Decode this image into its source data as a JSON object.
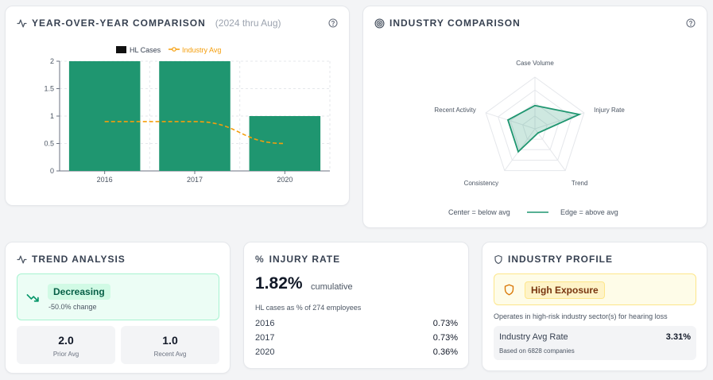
{
  "yoy": {
    "title": "YEAR-OVER-YEAR COMPARISON",
    "subtitle": "(2024 thru Aug)",
    "legend_cases": "HL Cases",
    "legend_avg": "Industry Avg"
  },
  "industry": {
    "title": "INDUSTRY COMPARISON",
    "note_center": "Center = below avg",
    "note_edge": "Edge = above avg"
  },
  "trend": {
    "title": "TREND ANALYSIS",
    "badge": "Decreasing",
    "change": "-50.0% change",
    "prior_value": "2.0",
    "prior_label": "Prior Avg",
    "recent_value": "1.0",
    "recent_label": "Recent Avg"
  },
  "rate": {
    "title": "INJURY RATE",
    "value": "1.82%",
    "qualifier": "cumulative",
    "description": "HL cases as % of 274 employees",
    "rows": [
      {
        "year": "2016",
        "rate": "0.73%"
      },
      {
        "year": "2017",
        "rate": "0.73%"
      },
      {
        "year": "2020",
        "rate": "0.36%"
      }
    ]
  },
  "profile": {
    "title": "INDUSTRY PROFILE",
    "badge": "High Exposure",
    "description": "Operates in high-risk industry sector(s) for hearing loss",
    "avg_label": "Industry Avg Rate",
    "avg_value": "3.31%",
    "avg_sub": "Based on 6828 companies"
  },
  "colors": {
    "bar": "#1f9670",
    "avg_line": "#f59e0b",
    "radar": "#1f9670"
  },
  "chart_data": [
    {
      "type": "bar",
      "title": "YEAR-OVER-YEAR COMPARISON",
      "categories": [
        "2016",
        "2017",
        "2020"
      ],
      "series": [
        {
          "name": "HL Cases",
          "values": [
            2,
            2,
            1
          ]
        },
        {
          "name": "Industry Avg",
          "values": [
            0.9,
            0.9,
            0.5
          ]
        }
      ],
      "ylim": [
        0,
        2
      ],
      "yticks": [
        "0",
        "0.5",
        "1",
        "1.5",
        "2"
      ],
      "grid": true,
      "legend": "top-center"
    },
    {
      "type": "radar",
      "title": "INDUSTRY COMPARISON",
      "axes": [
        "Case Volume",
        "Injury Rate",
        "Trend",
        "Consistency",
        "Recent Activity"
      ],
      "values": [
        0.45,
        0.9,
        0.1,
        0.55,
        0.55
      ],
      "levels": 4
    }
  ]
}
